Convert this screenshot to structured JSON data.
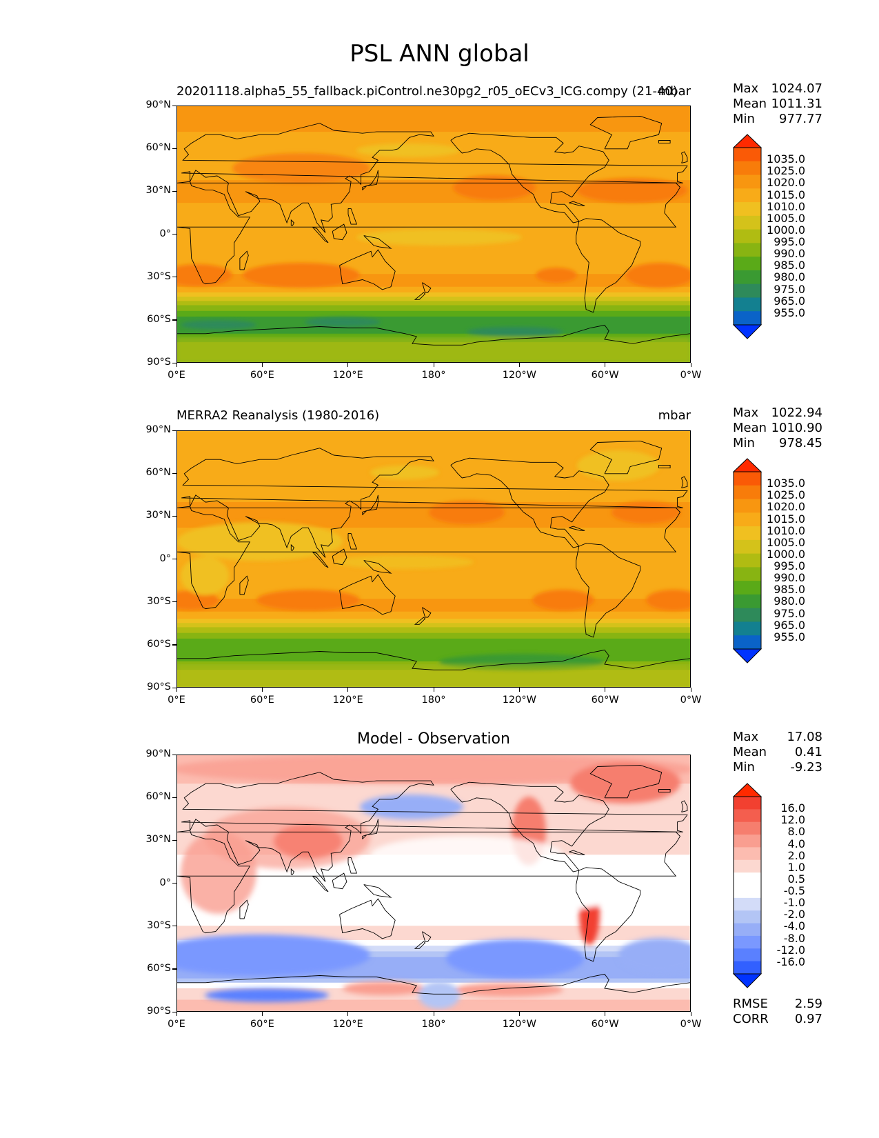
{
  "figure_title": "PSL ANN global",
  "colors": {
    "psl_levels": [
      "#0033ff",
      "#0a63c8",
      "#138090",
      "#2e8a5a",
      "#3a9a32",
      "#5aaa18",
      "#88b412",
      "#b0bc12",
      "#d4c21a",
      "#f0c020",
      "#f8ab18",
      "#f89610",
      "#f87c0a",
      "#fa5a06",
      "#ff2a00"
    ],
    "diff_levels": [
      "#0033ff",
      "#3260ff",
      "#5a80ff",
      "#7a98ff",
      "#97aef7",
      "#b3c5f5",
      "#d3dcf8",
      "#ffffff",
      "#ffffff",
      "#fcd8d0",
      "#fcbcb0",
      "#f99e90",
      "#f67e6e",
      "#f45e4e",
      "#f24030",
      "#ff2a00"
    ]
  },
  "chart_data": [
    {
      "type": "heatmap",
      "panel": "test",
      "title_left": "20201118.alpha5_55_fallback.piControl.ne30pg2_r05_oECv3_ICG.compy (21-40)",
      "title_right": "mbar",
      "stats": {
        "max": "1024.07",
        "mean": "1011.31",
        "min": "977.77"
      },
      "stat_labels": {
        "max": "Max",
        "mean": "Mean",
        "min": "Min"
      },
      "colorbar_levels": [
        "1035.0",
        "1025.0",
        "1020.0",
        "1015.0",
        "1010.0",
        "1005.0",
        "1000.0",
        "995.0",
        "990.0",
        "985.0",
        "980.0",
        "975.0",
        "965.0",
        "955.0"
      ],
      "x_ticks": [
        "0°E",
        "60°E",
        "120°E",
        "180°",
        "120°W",
        "60°W",
        "0°W"
      ],
      "y_ticks": [
        "90°N",
        "60°N",
        "30°N",
        "0°",
        "30°S",
        "60°S",
        "90°S"
      ],
      "x_range": [
        0,
        360
      ],
      "y_range": [
        -90,
        90
      ]
    },
    {
      "type": "heatmap",
      "panel": "reference",
      "title_left": "MERRA2 Reanalysis (1980-2016)",
      "title_right": "mbar",
      "stats": {
        "max": "1022.94",
        "mean": "1010.90",
        "min": "978.45"
      },
      "stat_labels": {
        "max": "Max",
        "mean": "Mean",
        "min": "Min"
      },
      "colorbar_levels": [
        "1035.0",
        "1025.0",
        "1020.0",
        "1015.0",
        "1010.0",
        "1005.0",
        "1000.0",
        "995.0",
        "990.0",
        "985.0",
        "980.0",
        "975.0",
        "965.0",
        "955.0"
      ],
      "x_ticks": [
        "0°E",
        "60°E",
        "120°E",
        "180°",
        "120°W",
        "60°W",
        "0°W"
      ],
      "y_ticks": [
        "90°N",
        "60°N",
        "30°N",
        "0°",
        "30°S",
        "60°S",
        "90°S"
      ],
      "x_range": [
        0,
        360
      ],
      "y_range": [
        -90,
        90
      ]
    },
    {
      "type": "heatmap",
      "panel": "difference",
      "title_center": "Model - Observation",
      "stats": {
        "max": "17.08",
        "mean": "0.41",
        "min": "-9.23"
      },
      "stat_labels": {
        "max": "Max",
        "mean": "Mean",
        "min": "Min"
      },
      "metrics": {
        "rmse": "2.59",
        "corr": "0.97"
      },
      "metric_labels": {
        "rmse": "RMSE",
        "corr": "CORR"
      },
      "colorbar_levels": [
        "16.0",
        "12.0",
        "8.0",
        "4.0",
        "2.0",
        "1.0",
        "0.5",
        "-0.5",
        "-1.0",
        "-2.0",
        "-4.0",
        "-8.0",
        "-12.0",
        "-16.0"
      ],
      "x_ticks": [
        "0°E",
        "60°E",
        "120°E",
        "180°",
        "120°W",
        "60°W",
        "0°W"
      ],
      "y_ticks": [
        "90°N",
        "60°N",
        "30°N",
        "0°",
        "30°S",
        "60°S",
        "90°S"
      ],
      "x_range": [
        0,
        360
      ],
      "y_range": [
        -90,
        90
      ]
    }
  ]
}
